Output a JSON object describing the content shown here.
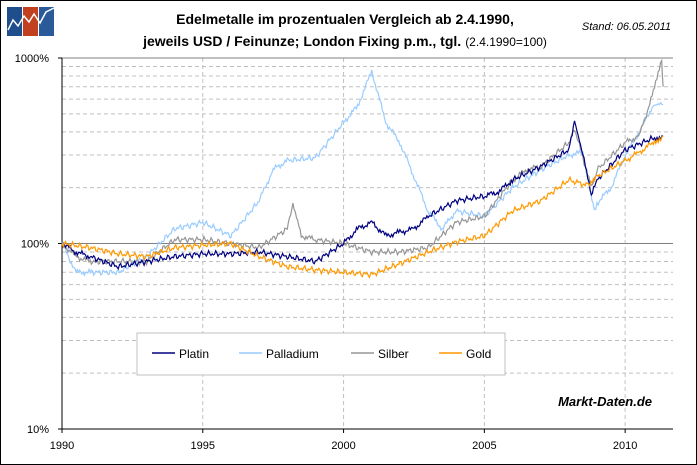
{
  "chart_data": {
    "type": "line",
    "title": "Edelmetalle im prozentualen Vergleich ab 2.4.1990,",
    "subtitle_bold": "jeweils USD / Feinunze; London Fixing p.m., tgl.",
    "subtitle_note": "(2.4.1990=100)",
    "stand": "Stand: 06.05.2011",
    "source": "Markt-Daten.de",
    "logo_text": "Markt-Daten.de",
    "xlim": [
      1990,
      2011.7
    ],
    "ylim": [
      10,
      1000
    ],
    "y_scale": "log",
    "grid": true,
    "legend_position": "bottom-left",
    "x_ticks": [
      "1990",
      "1995",
      "2000",
      "2005",
      "2010"
    ],
    "y_ticks": [
      "10%",
      "100%",
      "1000%"
    ],
    "series": [
      {
        "name": "Platin",
        "color": "#000080",
        "points": [
          [
            1990,
            100
          ],
          [
            1990.5,
            90
          ],
          [
            1991,
            85
          ],
          [
            1992,
            75
          ],
          [
            1993,
            80
          ],
          [
            1994,
            85
          ],
          [
            1995,
            88
          ],
          [
            1996,
            88
          ],
          [
            1997,
            90
          ],
          [
            1998,
            85
          ],
          [
            1999,
            80
          ],
          [
            2000,
            100
          ],
          [
            2000.5,
            120
          ],
          [
            2001,
            130
          ],
          [
            2001.5,
            110
          ],
          [
            2002,
            115
          ],
          [
            2002.5,
            120
          ],
          [
            2003,
            140
          ],
          [
            2004,
            170
          ],
          [
            2005,
            180
          ],
          [
            2005.5,
            190
          ],
          [
            2006,
            220
          ],
          [
            2007,
            260
          ],
          [
            2008,
            320
          ],
          [
            2008.2,
            460
          ],
          [
            2008.5,
            300
          ],
          [
            2008.8,
            180
          ],
          [
            2009,
            220
          ],
          [
            2010,
            320
          ],
          [
            2011,
            370
          ],
          [
            2011.35,
            380
          ]
        ]
      },
      {
        "name": "Palladium",
        "color": "#99CCFF",
        "points": [
          [
            1990,
            100
          ],
          [
            1990.5,
            70
          ],
          [
            1991,
            70
          ],
          [
            1992,
            70
          ],
          [
            1993,
            85
          ],
          [
            1994,
            120
          ],
          [
            1995,
            130
          ],
          [
            1996,
            110
          ],
          [
            1997,
            170
          ],
          [
            1997.5,
            250
          ],
          [
            1998,
            280
          ],
          [
            1999,
            290
          ],
          [
            2000,
            450
          ],
          [
            2000.5,
            550
          ],
          [
            2001,
            850
          ],
          [
            2001.5,
            450
          ],
          [
            2002,
            350
          ],
          [
            2002.5,
            230
          ],
          [
            2003,
            150
          ],
          [
            2003.5,
            120
          ],
          [
            2004,
            150
          ],
          [
            2005,
            140
          ],
          [
            2006,
            200
          ],
          [
            2007,
            250
          ],
          [
            2008,
            300
          ],
          [
            2008.5,
            310
          ],
          [
            2008.9,
            150
          ],
          [
            2009,
            165
          ],
          [
            2009.5,
            200
          ],
          [
            2010,
            300
          ],
          [
            2010.5,
            400
          ],
          [
            2011,
            560
          ],
          [
            2011.35,
            560
          ]
        ]
      },
      {
        "name": "Silber",
        "color": "#969696",
        "points": [
          [
            1990,
            100
          ],
          [
            1990.5,
            85
          ],
          [
            1991,
            80
          ],
          [
            1992,
            80
          ],
          [
            1993,
            80
          ],
          [
            1994,
            105
          ],
          [
            1995,
            105
          ],
          [
            1996,
            100
          ],
          [
            1997,
            95
          ],
          [
            1998,
            120
          ],
          [
            1998.2,
            160
          ],
          [
            1998.5,
            110
          ],
          [
            1999,
            105
          ],
          [
            2000,
            100
          ],
          [
            2001,
            90
          ],
          [
            2002,
            90
          ],
          [
            2003,
            95
          ],
          [
            2004,
            130
          ],
          [
            2005,
            140
          ],
          [
            2006,
            220
          ],
          [
            2006.5,
            250
          ],
          [
            2007,
            260
          ],
          [
            2008,
            350
          ],
          [
            2008.2,
            420
          ],
          [
            2008.8,
            200
          ],
          [
            2009,
            250
          ],
          [
            2010,
            350
          ],
          [
            2010.5,
            380
          ],
          [
            2011,
            650
          ],
          [
            2011.3,
            960
          ],
          [
            2011.35,
            700
          ]
        ]
      },
      {
        "name": "Gold",
        "color": "#FF9900",
        "points": [
          [
            1990,
            100
          ],
          [
            1991,
            95
          ],
          [
            1992,
            88
          ],
          [
            1993,
            85
          ],
          [
            1994,
            95
          ],
          [
            1995,
            98
          ],
          [
            1996,
            100
          ],
          [
            1997,
            85
          ],
          [
            1998,
            75
          ],
          [
            1999,
            72
          ],
          [
            2000,
            70
          ],
          [
            2001,
            68
          ],
          [
            2002,
            78
          ],
          [
            2003,
            90
          ],
          [
            2004,
            102
          ],
          [
            2005,
            110
          ],
          [
            2006,
            150
          ],
          [
            2007,
            170
          ],
          [
            2008,
            220
          ],
          [
            2008.7,
            205
          ],
          [
            2009,
            230
          ],
          [
            2010,
            280
          ],
          [
            2010.5,
            310
          ],
          [
            2011,
            350
          ],
          [
            2011.35,
            380
          ]
        ]
      }
    ]
  }
}
